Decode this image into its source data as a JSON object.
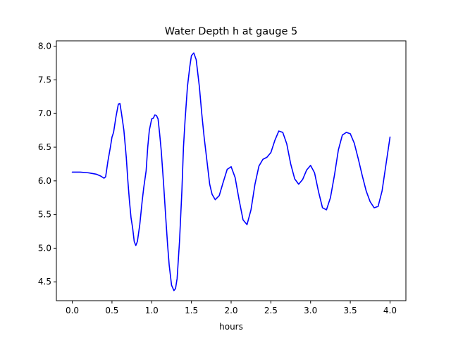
{
  "chart_data": {
    "type": "line",
    "title": "Water Depth h at gauge 5",
    "xlabel": "hours",
    "ylabel": "",
    "xlim": [
      -0.2,
      4.2
    ],
    "ylim": [
      4.22,
      8.08
    ],
    "grid": false,
    "legend": "none",
    "x_ticks": [
      0.0,
      0.5,
      1.0,
      1.5,
      2.0,
      2.5,
      3.0,
      3.5,
      4.0
    ],
    "x_tick_labels": [
      "0.0",
      "0.5",
      "1.0",
      "1.5",
      "2.0",
      "2.5",
      "3.0",
      "3.5",
      "4.0"
    ],
    "y_ticks": [
      4.5,
      5.0,
      5.5,
      6.0,
      6.5,
      7.0,
      7.5,
      8.0
    ],
    "y_tick_labels": [
      "4.5",
      "5.0",
      "5.5",
      "6.0",
      "6.5",
      "7.0",
      "7.5",
      "8.0"
    ],
    "series": [
      {
        "color": "#0000ff",
        "x": [
          0.0,
          0.1,
          0.2,
          0.3,
          0.36,
          0.4,
          0.42,
          0.45,
          0.48,
          0.5,
          0.52,
          0.55,
          0.58,
          0.6,
          0.62,
          0.65,
          0.68,
          0.7,
          0.72,
          0.74,
          0.76,
          0.78,
          0.8,
          0.82,
          0.85,
          0.88,
          0.9,
          0.93,
          0.95,
          0.97,
          1.0,
          1.02,
          1.04,
          1.06,
          1.08,
          1.1,
          1.12,
          1.15,
          1.18,
          1.2,
          1.22,
          1.25,
          1.28,
          1.3,
          1.32,
          1.35,
          1.38,
          1.4,
          1.42,
          1.45,
          1.48,
          1.5,
          1.53,
          1.56,
          1.6,
          1.63,
          1.66,
          1.7,
          1.73,
          1.76,
          1.8,
          1.85,
          1.9,
          1.95,
          2.0,
          2.05,
          2.1,
          2.15,
          2.2,
          2.25,
          2.3,
          2.35,
          2.4,
          2.45,
          2.5,
          2.55,
          2.6,
          2.65,
          2.7,
          2.75,
          2.8,
          2.85,
          2.9,
          2.95,
          3.0,
          3.05,
          3.1,
          3.15,
          3.2,
          3.25,
          3.3,
          3.35,
          3.4,
          3.45,
          3.5,
          3.55,
          3.6,
          3.65,
          3.7,
          3.75,
          3.8,
          3.85,
          3.9,
          3.95,
          4.0
        ],
        "y": [
          6.13,
          6.13,
          6.12,
          6.1,
          6.07,
          6.04,
          6.06,
          6.3,
          6.5,
          6.65,
          6.72,
          6.95,
          7.14,
          7.15,
          7.0,
          6.75,
          6.35,
          6.0,
          5.7,
          5.45,
          5.3,
          5.1,
          5.04,
          5.1,
          5.35,
          5.7,
          5.9,
          6.15,
          6.5,
          6.75,
          6.92,
          6.93,
          6.98,
          6.97,
          6.92,
          6.7,
          6.45,
          5.95,
          5.4,
          5.05,
          4.75,
          4.45,
          4.37,
          4.4,
          4.55,
          5.1,
          5.85,
          6.5,
          6.9,
          7.4,
          7.7,
          7.86,
          7.9,
          7.8,
          7.4,
          7.0,
          6.65,
          6.25,
          5.95,
          5.8,
          5.72,
          5.78,
          5.98,
          6.17,
          6.21,
          6.05,
          5.72,
          5.42,
          5.35,
          5.57,
          5.95,
          6.22,
          6.32,
          6.35,
          6.42,
          6.6,
          6.74,
          6.72,
          6.55,
          6.25,
          6.03,
          5.95,
          6.02,
          6.16,
          6.23,
          6.12,
          5.84,
          5.6,
          5.57,
          5.75,
          6.08,
          6.46,
          6.68,
          6.72,
          6.7,
          6.56,
          6.33,
          6.08,
          5.85,
          5.69,
          5.6,
          5.62,
          5.85,
          6.25,
          6.65
        ]
      }
    ]
  }
}
